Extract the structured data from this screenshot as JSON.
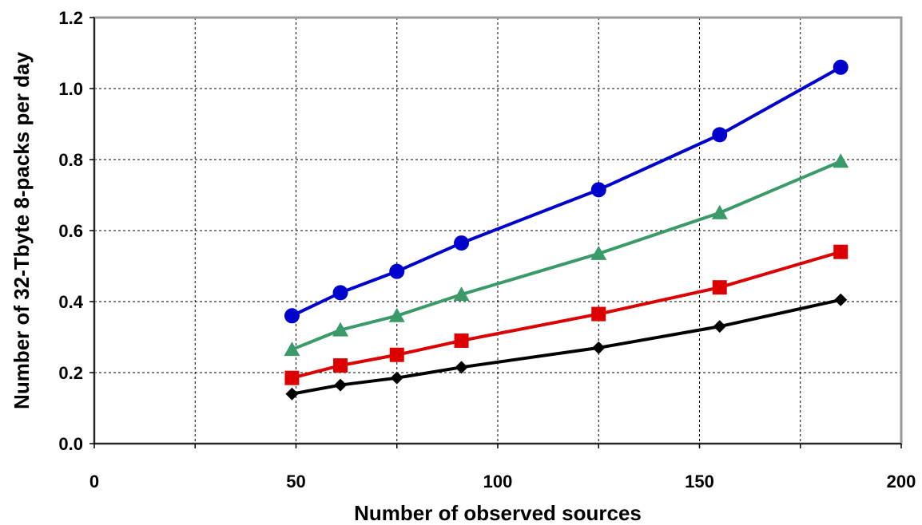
{
  "chart_data": {
    "type": "line",
    "title": "",
    "xlabel": "Number of observed sources",
    "ylabel": "Number of 32-Tbyte 8-packs per day",
    "xlim": [
      0,
      200
    ],
    "ylim": [
      0.0,
      1.2
    ],
    "xticks": [
      0,
      25,
      50,
      75,
      100,
      125,
      150,
      175,
      200
    ],
    "xtick_labels": [
      "0",
      "",
      "50",
      "",
      "100",
      "",
      "150",
      "",
      "200"
    ],
    "yticks": [
      0.0,
      0.2,
      0.4,
      0.6,
      0.8,
      1.0,
      1.2
    ],
    "ytick_labels": [
      "0.0",
      "0.2",
      "0.4",
      "0.6",
      "0.8",
      "1.0",
      "1.2"
    ],
    "grid": true,
    "legend": "none",
    "x": [
      49,
      61,
      75,
      91,
      125,
      155,
      185
    ],
    "series": [
      {
        "color": "#0000cc",
        "marker": "circle",
        "values": [
          0.36,
          0.425,
          0.485,
          0.565,
          0.715,
          0.87,
          1.06
        ]
      },
      {
        "color": "#3a9a6a",
        "marker": "triangle",
        "values": [
          0.265,
          0.32,
          0.36,
          0.42,
          0.535,
          0.65,
          0.795
        ]
      },
      {
        "color": "#dd0000",
        "marker": "square",
        "values": [
          0.185,
          0.22,
          0.25,
          0.29,
          0.365,
          0.44,
          0.54
        ]
      },
      {
        "color": "#000000",
        "marker": "diamond",
        "values": [
          0.14,
          0.165,
          0.185,
          0.215,
          0.27,
          0.33,
          0.405
        ]
      }
    ]
  }
}
